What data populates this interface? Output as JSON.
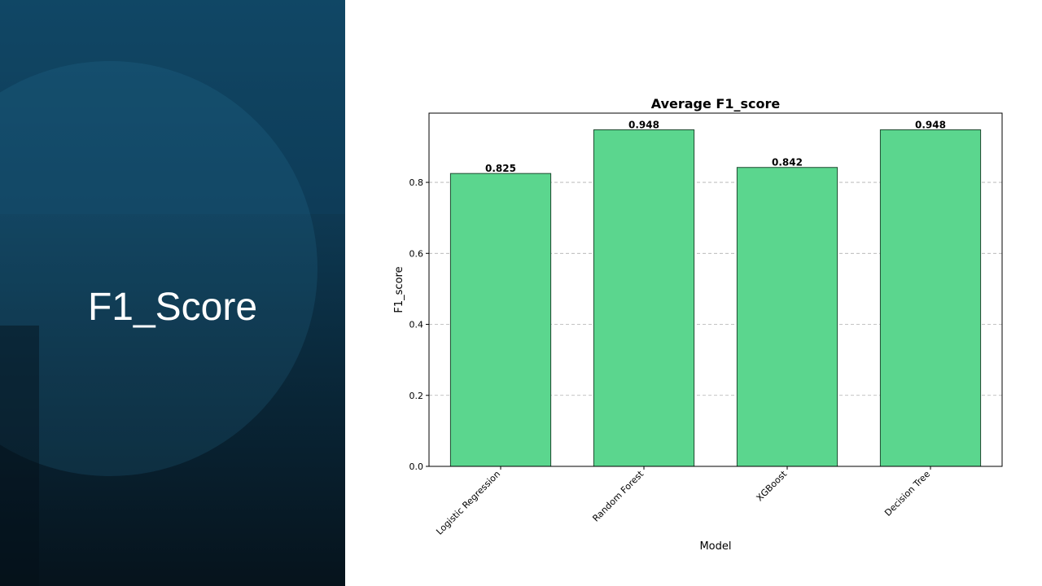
{
  "slide": {
    "title": "F1_Score"
  },
  "colors": {
    "bar_fill": "#5bd68e",
    "bar_edge": "#1e4a30",
    "panel_dark": "#0a2a3d",
    "panel_light": "#124a68"
  },
  "chart_data": {
    "type": "bar",
    "title": "Average F1_score",
    "xlabel": "Model",
    "ylabel": "F1_score",
    "categories": [
      "Logistic Regression",
      "Random Forest",
      "XGBoost",
      "Decision Tree"
    ],
    "values": [
      0.825,
      0.948,
      0.842,
      0.948
    ],
    "value_labels": [
      "0.825",
      "0.948",
      "0.842",
      "0.948"
    ],
    "yticks": [
      "0.0",
      "0.2",
      "0.4",
      "0.6",
      "0.8"
    ],
    "ylim": [
      0,
      0.995
    ],
    "grid": "y-dashed",
    "legend": "none"
  }
}
